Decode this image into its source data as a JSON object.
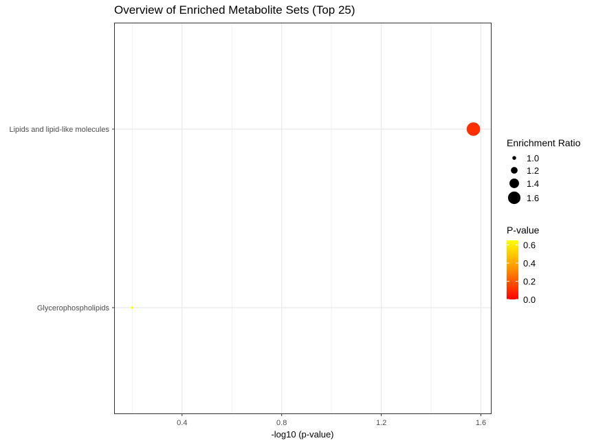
{
  "chart_data": {
    "type": "scatter",
    "title": "Overview of Enriched Metabolite Sets (Top 25)",
    "xlabel": "-log10 (p-value)",
    "ylabel": "",
    "xlim": [
      0.13,
      1.64
    ],
    "xticks": [
      0.4,
      0.8,
      1.2,
      1.6
    ],
    "tick_labels": [
      "0.4",
      "0.8",
      "1.2",
      "1.6"
    ],
    "grid": true,
    "categories": [
      "Lipids and lipid-like molecules",
      "Glycerophospholipids"
    ],
    "points": [
      {
        "category": "Lipids and lipid-like molecules",
        "x": 1.57,
        "enrichment_ratio": 1.67,
        "p_value": 0.027,
        "color": "#ff3000"
      },
      {
        "category": "Glycerophospholipids",
        "x": 0.2,
        "enrichment_ratio": 0.9,
        "p_value": 0.63,
        "color": "#ffff00"
      }
    ],
    "legend": {
      "placement": "right",
      "size": {
        "title": "Enrichment Ratio",
        "entries": [
          {
            "label": "1.0",
            "value": 1.0
          },
          {
            "label": "1.2",
            "value": 1.2
          },
          {
            "label": "1.4",
            "value": 1.4
          },
          {
            "label": "1.6",
            "value": 1.6
          }
        ]
      },
      "color": {
        "title": "P-value",
        "ticks": [
          "0.6",
          "0.4",
          "0.2",
          "0.0"
        ],
        "tick_values": [
          0.6,
          0.4,
          0.2,
          0.0
        ],
        "range": [
          0.0,
          0.65
        ],
        "low_color": "#ff0000",
        "high_color": "#ffff00"
      }
    }
  }
}
